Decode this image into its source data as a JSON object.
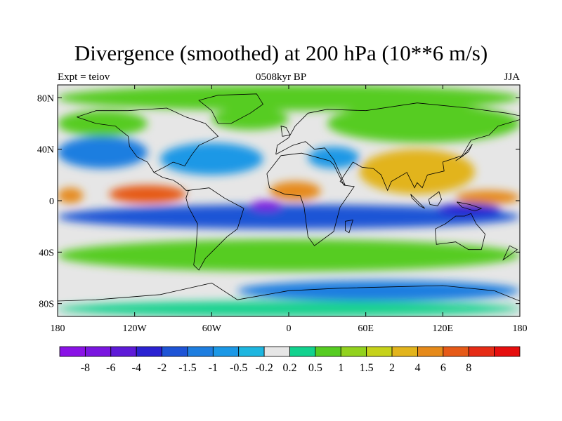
{
  "title": "Divergence (smoothed) at 200 hPa (10**6 m/s)",
  "left_label": "Expt = teiov",
  "center_label": "0508kyr BP",
  "right_label": "JJA",
  "lat_ticks": [
    {
      "lat": 80,
      "label": "80N"
    },
    {
      "lat": 40,
      "label": "40N"
    },
    {
      "lat": 0,
      "label": "0"
    },
    {
      "lat": -40,
      "label": "40S"
    },
    {
      "lat": -80,
      "label": "80S"
    }
  ],
  "lon_ticks": [
    {
      "lon": -180,
      "label": "180"
    },
    {
      "lon": -120,
      "label": "120W"
    },
    {
      "lon": -60,
      "label": "60W"
    },
    {
      "lon": 0,
      "label": "0"
    },
    {
      "lon": 60,
      "label": "60E"
    },
    {
      "lon": 120,
      "label": "120E"
    },
    {
      "lon": 180,
      "label": "180"
    }
  ],
  "colorbar": {
    "colors": [
      "#8a12e6",
      "#7a16e0",
      "#5e1ad8",
      "#2b22d2",
      "#1e54d6",
      "#1e7ee0",
      "#1b98e6",
      "#1eb6e0",
      "#e6e6e6",
      "#12d28e",
      "#56cc22",
      "#92d21e",
      "#c6d21a",
      "#e2b41c",
      "#e68a1a",
      "#e65a18",
      "#e62c16",
      "#e60e0e"
    ],
    "labels": [
      "-8",
      "-6",
      "-4",
      "-2",
      "-1.5",
      "-1",
      "-0.5",
      "-0.2",
      "0.2",
      "0.5",
      "1",
      "1.5",
      "2",
      "4",
      "6",
      "8"
    ]
  },
  "field": {
    "bands": [
      {
        "name": "arctic",
        "lat1": 90,
        "lat2": 70,
        "lon1": -180,
        "lon2": 180,
        "value": 0.5
      },
      {
        "name": "n-pacific-green",
        "lat1": 70,
        "lat2": 50,
        "lon1": -180,
        "lon2": -110,
        "value": 0.6
      },
      {
        "name": "n-atlantic-green",
        "lat1": 72,
        "lat2": 55,
        "lon1": -60,
        "lon2": 0,
        "value": 0.6
      },
      {
        "name": "eurasia-green",
        "lat1": 75,
        "lat2": 45,
        "lon1": 30,
        "lon2": 180,
        "value": 0.8
      },
      {
        "name": "n-pacific-blue",
        "lat1": 50,
        "lat2": 25,
        "lon1": -180,
        "lon2": -110,
        "value": -1.2
      },
      {
        "name": "n-america-blue",
        "lat1": 45,
        "lat2": 20,
        "lon1": -100,
        "lon2": -20,
        "value": -1.0
      },
      {
        "name": "asia-orange",
        "lat1": 40,
        "lat2": 5,
        "lon1": 55,
        "lon2": 145,
        "value": 2.5
      },
      {
        "name": "mideast-blue",
        "lat1": 42,
        "lat2": 25,
        "lon1": 15,
        "lon2": 55,
        "value": -0.8
      },
      {
        "name": "e-pacific-red",
        "lat1": 12,
        "lat2": -2,
        "lon1": -140,
        "lon2": -80,
        "value": 6.0
      },
      {
        "name": "africa-red",
        "lat1": 15,
        "lat2": 0,
        "lon1": -15,
        "lon2": 25,
        "value": 4.5
      },
      {
        "name": "w-pacific-red",
        "lat1": 8,
        "lat2": -3,
        "lon1": 130,
        "lon2": 180,
        "value": 5.0
      },
      {
        "name": "date-line-orange",
        "lat1": 10,
        "lat2": -2,
        "lon1": -180,
        "lon2": -160,
        "value": 4.0
      },
      {
        "name": "s-tropics-blue",
        "lat1": -3,
        "lat2": -22,
        "lon1": -180,
        "lon2": 180,
        "value": -2.0
      },
      {
        "name": "maritime-navy",
        "lat1": -2,
        "lat2": -12,
        "lon1": 115,
        "lon2": 165,
        "value": -4.0
      },
      {
        "name": "atlantic-purple",
        "lat1": 0,
        "lat2": -8,
        "lon1": -30,
        "lon2": -5,
        "value": -8.0
      },
      {
        "name": "s-mid-green",
        "lat1": -30,
        "lat2": -55,
        "lon1": -180,
        "lon2": 180,
        "value": 0.6
      },
      {
        "name": "s-ocean-blue",
        "lat1": -62,
        "lat2": -78,
        "lon1": -40,
        "lon2": 180,
        "value": -1.2
      },
      {
        "name": "antarctic-green",
        "lat1": -78,
        "lat2": -90,
        "lon1": -180,
        "lon2": 180,
        "value": 0.4
      }
    ],
    "coastlines": [
      {
        "name": "north-america",
        "points": [
          [
            -165,
            65
          ],
          [
            -150,
            70
          ],
          [
            -125,
            70
          ],
          [
            -95,
            72
          ],
          [
            -80,
            65
          ],
          [
            -65,
            60
          ],
          [
            -55,
            50
          ],
          [
            -70,
            43
          ],
          [
            -76,
            35
          ],
          [
            -81,
            27
          ],
          [
            -90,
            30
          ],
          [
            -97,
            26
          ],
          [
            -105,
            22
          ],
          [
            -110,
            30
          ],
          [
            -118,
            34
          ],
          [
            -124,
            42
          ],
          [
            -125,
            50
          ],
          [
            -135,
            58
          ],
          [
            -150,
            60
          ],
          [
            -165,
            65
          ]
        ]
      },
      {
        "name": "central-america",
        "points": [
          [
            -105,
            22
          ],
          [
            -98,
            18
          ],
          [
            -90,
            16
          ],
          [
            -84,
            12
          ],
          [
            -80,
            8
          ],
          [
            -77,
            8
          ]
        ]
      },
      {
        "name": "south-america",
        "points": [
          [
            -78,
            8
          ],
          [
            -62,
            10
          ],
          [
            -50,
            2
          ],
          [
            -35,
            -6
          ],
          [
            -40,
            -22
          ],
          [
            -48,
            -28
          ],
          [
            -58,
            -38
          ],
          [
            -65,
            -45
          ],
          [
            -70,
            -54
          ],
          [
            -74,
            -50
          ],
          [
            -72,
            -35
          ],
          [
            -71,
            -18
          ],
          [
            -78,
            -5
          ],
          [
            -80,
            2
          ],
          [
            -78,
            8
          ]
        ]
      },
      {
        "name": "greenland",
        "points": [
          [
            -55,
            60
          ],
          [
            -45,
            60
          ],
          [
            -30,
            68
          ],
          [
            -20,
            75
          ],
          [
            -25,
            83
          ],
          [
            -55,
            82
          ],
          [
            -70,
            78
          ],
          [
            -60,
            70
          ],
          [
            -55,
            60
          ]
        ]
      },
      {
        "name": "eurasia",
        "points": [
          [
            -10,
            36
          ],
          [
            -9,
            43
          ],
          [
            0,
            49
          ],
          [
            5,
            58
          ],
          [
            15,
            68
          ],
          [
            30,
            71
          ],
          [
            60,
            70
          ],
          [
            100,
            76
          ],
          [
            140,
            72
          ],
          [
            170,
            68
          ],
          [
            180,
            66
          ],
          [
            180,
            63
          ],
          [
            163,
            58
          ],
          [
            156,
            51
          ],
          [
            142,
            47
          ],
          [
            135,
            35
          ],
          [
            120,
            30
          ],
          [
            121,
            23
          ],
          [
            108,
            20
          ],
          [
            104,
            10
          ],
          [
            100,
            14
          ],
          [
            98,
            10
          ],
          [
            92,
            22
          ],
          [
            80,
            15
          ],
          [
            77,
            8
          ],
          [
            72,
            20
          ],
          [
            66,
            25
          ],
          [
            57,
            26
          ],
          [
            50,
            30
          ],
          [
            40,
            15
          ],
          [
            44,
            12
          ],
          [
            35,
            32
          ],
          [
            28,
            41
          ],
          [
            20,
            40
          ],
          [
            13,
            46
          ],
          [
            3,
            43
          ],
          [
            -10,
            36
          ]
        ]
      },
      {
        "name": "africa",
        "points": [
          [
            -17,
            21
          ],
          [
            -6,
            35
          ],
          [
            10,
            37
          ],
          [
            32,
            31
          ],
          [
            35,
            28
          ],
          [
            43,
            12
          ],
          [
            51,
            11
          ],
          [
            40,
            -5
          ],
          [
            35,
            -24
          ],
          [
            20,
            -35
          ],
          [
            15,
            -28
          ],
          [
            12,
            -5
          ],
          [
            9,
            4
          ],
          [
            -3,
            5
          ],
          [
            -15,
            10
          ],
          [
            -17,
            21
          ]
        ]
      },
      {
        "name": "australia",
        "points": [
          [
            114,
            -22
          ],
          [
            122,
            -18
          ],
          [
            130,
            -12
          ],
          [
            137,
            -12
          ],
          [
            142,
            -10
          ],
          [
            146,
            -18
          ],
          [
            153,
            -26
          ],
          [
            150,
            -38
          ],
          [
            140,
            -38
          ],
          [
            130,
            -32
          ],
          [
            115,
            -34
          ],
          [
            114,
            -22
          ]
        ]
      },
      {
        "name": "madagascar",
        "points": [
          [
            44,
            -16
          ],
          [
            50,
            -15
          ],
          [
            47,
            -25
          ],
          [
            44,
            -23
          ],
          [
            44,
            -16
          ]
        ]
      },
      {
        "name": "new-guinea",
        "points": [
          [
            131,
            -1
          ],
          [
            141,
            -3
          ],
          [
            150,
            -6
          ],
          [
            145,
            -8
          ],
          [
            135,
            -5
          ],
          [
            131,
            -1
          ]
        ]
      },
      {
        "name": "borneo",
        "points": [
          [
            109,
            1
          ],
          [
            117,
            7
          ],
          [
            119,
            1
          ],
          [
            116,
            -4
          ],
          [
            110,
            -3
          ],
          [
            109,
            1
          ]
        ]
      },
      {
        "name": "sumatra",
        "points": [
          [
            95,
            5
          ],
          [
            106,
            -6
          ],
          [
            102,
            -4
          ],
          [
            96,
            2
          ],
          [
            95,
            5
          ]
        ]
      },
      {
        "name": "japan",
        "points": [
          [
            130,
            31
          ],
          [
            136,
            35
          ],
          [
            141,
            41
          ],
          [
            143,
            44
          ],
          [
            140,
            38
          ],
          [
            130,
            31
          ]
        ]
      },
      {
        "name": "britain",
        "points": [
          [
            -5,
            50
          ],
          [
            1,
            51
          ],
          [
            -2,
            57
          ],
          [
            -6,
            58
          ],
          [
            -5,
            50
          ]
        ]
      },
      {
        "name": "new-zealand",
        "points": [
          [
            172,
            -35
          ],
          [
            178,
            -38
          ],
          [
            174,
            -41
          ],
          [
            167,
            -46
          ],
          [
            172,
            -35
          ]
        ]
      },
      {
        "name": "antarctica",
        "points": [
          [
            -180,
            -78
          ],
          [
            -150,
            -77
          ],
          [
            -100,
            -73
          ],
          [
            -60,
            -64
          ],
          [
            -40,
            -77
          ],
          [
            0,
            -70
          ],
          [
            40,
            -68
          ],
          [
            80,
            -67
          ],
          [
            120,
            -66
          ],
          [
            160,
            -70
          ],
          [
            180,
            -78
          ]
        ]
      }
    ]
  }
}
